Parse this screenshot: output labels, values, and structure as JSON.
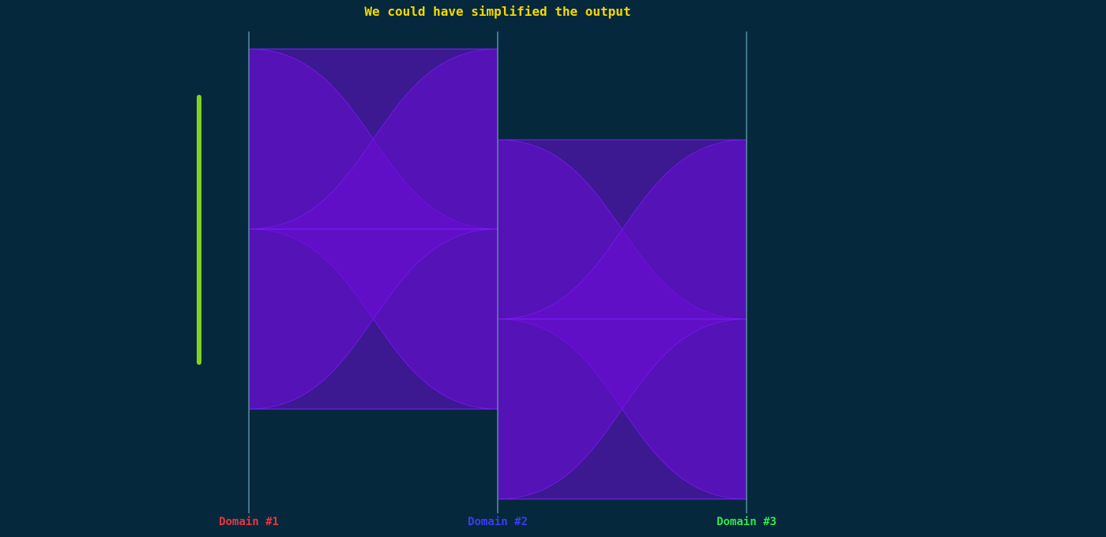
{
  "title": "We could have simplified the output",
  "colors": {
    "background": "#06283d",
    "title": "#f5d800",
    "axis_line": "#5b8ea6",
    "ribbon_fill": "#6a0dd6",
    "ribbon_stroke": "#7a22ff",
    "scroll_indicator": "#7ed321"
  },
  "axes": [
    {
      "label": "Domain #1",
      "color": "#e8363f"
    },
    {
      "label": "Domain #2",
      "color": "#3d3df0"
    },
    {
      "label": "Domain #3",
      "color": "#2ee84a"
    }
  ],
  "chart_data": {
    "type": "parallel-sets",
    "dimensions": [
      "Domain #1",
      "Domain #2",
      "Domain #3"
    ],
    "stage1": {
      "left_segments": 2,
      "right_segments": 2,
      "ribbons": 4
    },
    "stage2": {
      "left_segments": 2,
      "right_segments": 2,
      "ribbons": 4
    }
  }
}
